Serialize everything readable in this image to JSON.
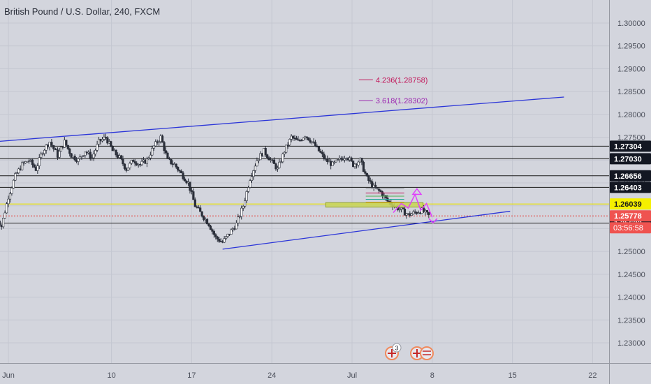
{
  "header": {
    "title": "British Pound / U.S. Dollar, 240, FXCM"
  },
  "colors": {
    "background": "#d3d5dd",
    "grid": "#c4c7d1",
    "candle_up": "#ffffff",
    "candle_down": "#2a2e39",
    "trendline": "#2b35d8",
    "level_line": "#1a1a1a",
    "yellow_line": "#e8e000",
    "red_line": "#e53935",
    "price_badge_bg": "#131722",
    "price_badge_text": "#ffffff",
    "current_badge_bg": "#ef5350",
    "yellow_badge_bg": "#f5f000",
    "fib_magenta": "#c2185b",
    "fib_purple": "#9c27b0"
  },
  "chart_data": {
    "type": "candlestick",
    "title": "British Pound / U.S. Dollar, 240, FXCM",
    "ylim": [
      1.2255,
      1.3028
    ],
    "y_ticks": [
      "1.30000",
      "1.29500",
      "1.29000",
      "1.28500",
      "1.28000",
      "1.27500",
      "1.27000",
      "1.26500",
      "1.26000",
      "1.25500",
      "1.25000",
      "1.24500",
      "1.24000",
      "1.23500",
      "1.23000"
    ],
    "x_ticks": [
      {
        "label": "Jun",
        "day": 0
      },
      {
        "label": "10",
        "day": 9
      },
      {
        "label": "17",
        "day": 16
      },
      {
        "label": "24",
        "day": 23
      },
      {
        "label": "Jul",
        "day": 30
      },
      {
        "label": "8",
        "day": 37
      },
      {
        "label": "15",
        "day": 44
      },
      {
        "label": "22",
        "day": 51
      }
    ],
    "xlim_days": [
      0,
      59
    ],
    "close_path": [
      [
        -1.3,
        1.2585
      ],
      [
        -0.6,
        1.2555
      ],
      [
        0.0,
        1.262
      ],
      [
        0.6,
        1.2665
      ],
      [
        1.2,
        1.269
      ],
      [
        1.8,
        1.27
      ],
      [
        2.4,
        1.268
      ],
      [
        3.0,
        1.272
      ],
      [
        3.6,
        1.274
      ],
      [
        4.3,
        1.271
      ],
      [
        4.9,
        1.274
      ],
      [
        5.5,
        1.271
      ],
      [
        6.1,
        1.27
      ],
      [
        6.7,
        1.272
      ],
      [
        7.3,
        1.2705
      ],
      [
        7.9,
        1.274
      ],
      [
        8.5,
        1.275
      ],
      [
        9.1,
        1.272
      ],
      [
        9.7,
        1.2705
      ],
      [
        10.3,
        1.268
      ],
      [
        10.9,
        1.27
      ],
      [
        11.5,
        1.269
      ],
      [
        12.1,
        1.27
      ],
      [
        12.7,
        1.273
      ],
      [
        13.3,
        1.275
      ],
      [
        13.9,
        1.27
      ],
      [
        14.5,
        1.269
      ],
      [
        15.1,
        1.267
      ],
      [
        15.7,
        1.265
      ],
      [
        16.3,
        1.26
      ],
      [
        16.9,
        1.258
      ],
      [
        17.5,
        1.256
      ],
      [
        18.1,
        1.253
      ],
      [
        18.7,
        1.252
      ],
      [
        19.3,
        1.254
      ],
      [
        19.9,
        1.256
      ],
      [
        20.5,
        1.26
      ],
      [
        21.1,
        1.266
      ],
      [
        21.7,
        1.27
      ],
      [
        22.3,
        1.272
      ],
      [
        22.9,
        1.27
      ],
      [
        23.5,
        1.268
      ],
      [
        24.1,
        1.272
      ],
      [
        24.7,
        1.275
      ],
      [
        25.3,
        1.274
      ],
      [
        25.9,
        1.2755
      ],
      [
        26.5,
        1.274
      ],
      [
        27.1,
        1.272
      ],
      [
        27.7,
        1.27
      ],
      [
        28.3,
        1.269
      ],
      [
        28.9,
        1.27
      ],
      [
        29.5,
        1.271
      ],
      [
        30.1,
        1.269
      ],
      [
        30.7,
        1.27
      ],
      [
        31.3,
        1.266
      ],
      [
        31.9,
        1.264
      ],
      [
        32.5,
        1.263
      ],
      [
        33.1,
        1.261
      ],
      [
        33.7,
        1.26
      ],
      [
        34.3,
        1.259
      ],
      [
        34.9,
        1.258
      ],
      [
        35.5,
        1.2585
      ],
      [
        36.1,
        1.259
      ],
      [
        36.7,
        1.2578
      ]
    ],
    "annotations": {
      "horizontal_levels": [
        "1.27304",
        "1.27030",
        "1.26656",
        "1.26403",
        "1.25622"
      ],
      "yellow_level": "1.26039",
      "current_price": "1.25778",
      "countdown": "03:56:58",
      "fib_extensions": [
        {
          "label": "4.236(1.28758)",
          "value": 1.28758,
          "color": "#c2185b"
        },
        {
          "label": "3.618(1.28302)",
          "value": 1.28302,
          "color": "#9c27b0"
        }
      ],
      "trend_lines": [
        {
          "from": [
            -1.3,
            1.274
          ],
          "to": [
            48.5,
            1.2838
          ]
        },
        {
          "from": [
            18.7,
            1.2505
          ],
          "to": [
            43.8,
            1.2588
          ]
        }
      ]
    }
  },
  "events": {
    "event_badge_count": "3"
  }
}
